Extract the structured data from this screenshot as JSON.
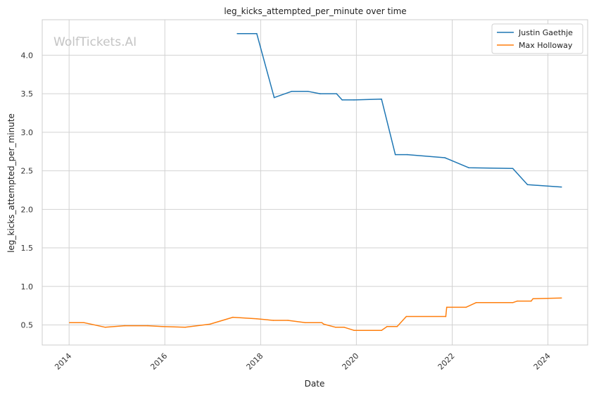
{
  "chart_data": {
    "type": "line",
    "title": "leg_kicks_attempted_per_minute over time",
    "xlabel": "Date",
    "ylabel": "leg_kicks_attempted_per_minute",
    "watermark": "WolfTickets.AI",
    "x_ticks": [
      "2014",
      "2016",
      "2018",
      "2020",
      "2022",
      "2024"
    ],
    "y_ticks": [
      "0.5",
      "1.0",
      "1.5",
      "2.0",
      "2.5",
      "3.0",
      "3.5",
      "4.0"
    ],
    "xlim": [
      "2013-06-10",
      "2024-10-30"
    ],
    "ylim": [
      0.24,
      4.46
    ],
    "grid": true,
    "legend_position": "top-right",
    "series": [
      {
        "name": "Justin Gaethje",
        "color": "#1f77b4",
        "points": [
          [
            "2017-07-07",
            4.28
          ],
          [
            "2017-12-02",
            4.28
          ],
          [
            "2018-04-14",
            3.45
          ],
          [
            "2018-08-25",
            3.53
          ],
          [
            "2018-12-29",
            3.53
          ],
          [
            "2019-03-30",
            3.5
          ],
          [
            "2019-08-03",
            3.5
          ],
          [
            "2019-09-14",
            3.42
          ],
          [
            "2019-12-14",
            3.42
          ],
          [
            "2020-07-11",
            3.43
          ],
          [
            "2020-10-24",
            2.71
          ],
          [
            "2021-01-23",
            2.71
          ],
          [
            "2021-11-06",
            2.67
          ],
          [
            "2022-05-07",
            2.54
          ],
          [
            "2023-04-08",
            2.53
          ],
          [
            "2023-07-29",
            2.32
          ],
          [
            "2024-04-13",
            2.29
          ]
        ]
      },
      {
        "name": "Max Holloway",
        "color": "#ff7f0e",
        "points": [
          [
            "2014-01-04",
            0.53
          ],
          [
            "2014-04-26",
            0.53
          ],
          [
            "2014-10-04",
            0.47
          ],
          [
            "2015-02-28",
            0.49
          ],
          [
            "2015-08-23",
            0.49
          ],
          [
            "2015-12-12",
            0.48
          ],
          [
            "2016-06-04",
            0.47
          ],
          [
            "2016-12-10",
            0.51
          ],
          [
            "2017-06-03",
            0.6
          ],
          [
            "2017-12-02",
            0.58
          ],
          [
            "2018-04-07",
            0.56
          ],
          [
            "2018-07-28",
            0.56
          ],
          [
            "2018-12-08",
            0.53
          ],
          [
            "2019-04-13",
            0.53
          ],
          [
            "2019-04-27",
            0.51
          ],
          [
            "2019-07-27",
            0.47
          ],
          [
            "2019-09-30",
            0.47
          ],
          [
            "2019-12-14",
            0.43
          ],
          [
            "2020-07-11",
            0.43
          ],
          [
            "2020-08-22",
            0.48
          ],
          [
            "2020-11-07",
            0.48
          ],
          [
            "2021-01-16",
            0.61
          ],
          [
            "2021-11-13",
            0.61
          ],
          [
            "2021-11-20",
            0.73
          ],
          [
            "2022-04-16",
            0.73
          ],
          [
            "2022-07-02",
            0.79
          ],
          [
            "2023-04-08",
            0.79
          ],
          [
            "2023-05-13",
            0.81
          ],
          [
            "2023-08-26",
            0.81
          ],
          [
            "2023-09-09",
            0.84
          ],
          [
            "2024-04-13",
            0.85
          ]
        ]
      }
    ]
  }
}
